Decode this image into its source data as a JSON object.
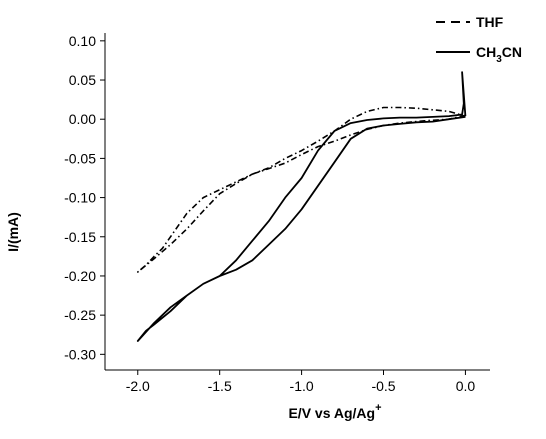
{
  "chart_data": {
    "type": "line",
    "xlabel": "E/V vs Ag/Ag",
    "xlabel_superscript": "+",
    "ylabel": "I/(mA)",
    "xlim": [
      -2.2,
      0.15
    ],
    "ylim": [
      -0.32,
      0.11
    ],
    "xticks": [
      -2.0,
      -1.5,
      -1.0,
      -0.5,
      0.0
    ],
    "xtick_labels": [
      "-2.0",
      "-1.5",
      "-1.0",
      "-0.5",
      "0.0"
    ],
    "yticks": [
      0.1,
      0.05,
      0.0,
      -0.05,
      -0.1,
      -0.15,
      -0.2,
      -0.25,
      -0.3
    ],
    "ytick_labels": [
      "0.10",
      "0.05",
      "0.00",
      "-0.05",
      "-0.10",
      "-0.15",
      "-0.20",
      "-0.25",
      "-0.30"
    ],
    "grid": false,
    "legend_position": "top-right",
    "series": [
      {
        "name": "THF",
        "name_parts": [
          "THF",
          "",
          ""
        ],
        "style": "dashed",
        "color": "#000000",
        "x": [
          0.0,
          -0.1,
          -0.25,
          -0.4,
          -0.5,
          -0.6,
          -0.7,
          -0.8,
          -0.9,
          -1.0,
          -1.1,
          -1.2,
          -1.3,
          -1.4,
          -1.5,
          -1.6,
          -1.7,
          -1.8,
          -1.9,
          -2.0,
          -1.95,
          -1.9,
          -1.85,
          -1.8,
          -1.7,
          -1.6,
          -1.5,
          -1.4,
          -1.3,
          -1.2,
          -1.1,
          -1.0,
          -0.9,
          -0.8,
          -0.7,
          -0.6,
          -0.5,
          -0.4,
          -0.3,
          -0.2,
          -0.1,
          -0.05,
          0.0
        ],
        "y": [
          0.005,
          0.0,
          -0.002,
          -0.005,
          -0.008,
          -0.013,
          -0.02,
          -0.028,
          -0.035,
          -0.045,
          -0.056,
          -0.063,
          -0.07,
          -0.082,
          -0.095,
          -0.117,
          -0.14,
          -0.16,
          -0.178,
          -0.195,
          -0.186,
          -0.175,
          -0.165,
          -0.15,
          -0.12,
          -0.1,
          -0.09,
          -0.08,
          -0.07,
          -0.062,
          -0.05,
          -0.04,
          -0.028,
          -0.015,
          0.0,
          0.01,
          0.015,
          0.015,
          0.014,
          0.012,
          0.01,
          0.007,
          0.003
        ]
      },
      {
        "name": "CH3CN",
        "name_parts": [
          "CH",
          "3",
          "CN"
        ],
        "style": "solid",
        "color": "#000000",
        "x": [
          0.0,
          -0.1,
          -0.2,
          -0.3,
          -0.4,
          -0.5,
          -0.6,
          -0.7,
          -0.8,
          -0.9,
          -1.0,
          -1.1,
          -1.2,
          -1.3,
          -1.4,
          -1.5,
          -1.6,
          -1.7,
          -1.8,
          -1.9,
          -2.0,
          -1.95,
          -1.9,
          -1.8,
          -1.7,
          -1.6,
          -1.5,
          -1.4,
          -1.3,
          -1.2,
          -1.1,
          -1.0,
          -0.9,
          -0.8,
          -0.7,
          -0.6,
          -0.5,
          -0.4,
          -0.3,
          -0.2,
          -0.1,
          -0.02,
          -0.01,
          -0.02,
          0.0
        ],
        "y": [
          0.003,
          0.0,
          -0.003,
          -0.004,
          -0.006,
          -0.008,
          -0.012,
          -0.025,
          -0.055,
          -0.085,
          -0.115,
          -0.14,
          -0.16,
          -0.18,
          -0.192,
          -0.2,
          -0.21,
          -0.225,
          -0.24,
          -0.26,
          -0.283,
          -0.27,
          -0.262,
          -0.245,
          -0.225,
          -0.21,
          -0.2,
          -0.18,
          -0.155,
          -0.13,
          -0.1,
          -0.075,
          -0.04,
          -0.015,
          -0.005,
          -0.001,
          0.001,
          0.002,
          0.002,
          0.003,
          0.004,
          0.006,
          0.02,
          0.06,
          0.004
        ]
      }
    ]
  }
}
